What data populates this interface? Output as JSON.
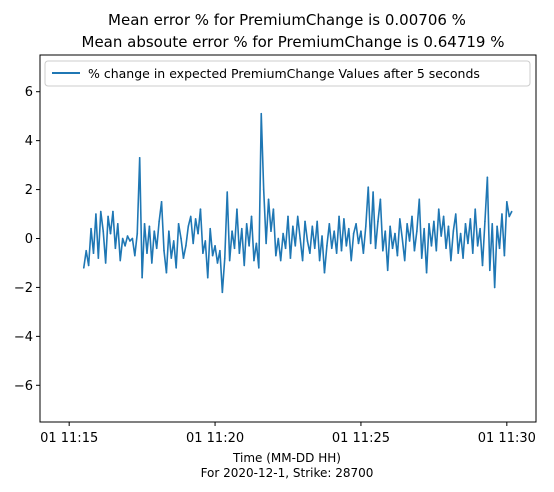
{
  "chart_data": {
    "type": "line",
    "title_lines": [
      "Mean error % for PremiumChange is 0.00706 %",
      "Mean absoute error % for PremiumChange is 0.64719 %"
    ],
    "xlabel_lines": [
      "Time (MM-DD HH)",
      "For 2020-12-1, Strike: 28700"
    ],
    "ylabel": "",
    "xlim": [
      "2020-12-01 11:14:00",
      "2020-12-01 11:31:00"
    ],
    "ylim": [
      -7.5,
      7.5
    ],
    "x_ticks": [
      {
        "value": "2020-12-01 11:15:00",
        "label": "01 11:15"
      },
      {
        "value": "2020-12-01 11:20:00",
        "label": "01 11:20"
      },
      {
        "value": "2020-12-01 11:25:00",
        "label": "01 11:25"
      },
      {
        "value": "2020-12-01 11:30:00",
        "label": "01 11:30"
      }
    ],
    "y_ticks": [
      {
        "value": -6,
        "label": "−6"
      },
      {
        "value": -4,
        "label": "−4"
      },
      {
        "value": -2,
        "label": "−2"
      },
      {
        "value": 0,
        "label": "0"
      },
      {
        "value": 2,
        "label": "2"
      },
      {
        "value": 4,
        "label": "4"
      },
      {
        "value": 6,
        "label": "6"
      }
    ],
    "grid": false,
    "legend_position": "top",
    "series": [
      {
        "name": "% change in expected PremiumChange Values after 5 seconds",
        "color": "#1f77b4",
        "points": [
          [
            "2020-12-01 11:15:30",
            -1.2
          ],
          [
            "2020-12-01 11:15:35",
            -0.5
          ],
          [
            "2020-12-01 11:15:40",
            -1.1
          ],
          [
            "2020-12-01 11:15:45",
            0.4
          ],
          [
            "2020-12-01 11:15:50",
            -0.6
          ],
          [
            "2020-12-01 11:15:55",
            1.0
          ],
          [
            "2020-12-01 11:16:00",
            -0.8
          ],
          [
            "2020-12-01 11:16:05",
            1.1
          ],
          [
            "2020-12-01 11:16:10",
            0.3
          ],
          [
            "2020-12-01 11:16:15",
            -1.0
          ],
          [
            "2020-12-01 11:16:20",
            0.9
          ],
          [
            "2020-12-01 11:16:25",
            0.2
          ],
          [
            "2020-12-01 11:16:30",
            1.1
          ],
          [
            "2020-12-01 11:16:35",
            -0.4
          ],
          [
            "2020-12-01 11:16:40",
            0.6
          ],
          [
            "2020-12-01 11:16:45",
            -0.9
          ],
          [
            "2020-12-01 11:16:50",
            0.0
          ],
          [
            "2020-12-01 11:16:55",
            -0.3
          ],
          [
            "2020-12-01 11:17:00",
            0.1
          ],
          [
            "2020-12-01 11:17:05",
            -0.1
          ],
          [
            "2020-12-01 11:17:10",
            0.0
          ],
          [
            "2020-12-01 11:17:15",
            -0.7
          ],
          [
            "2020-12-01 11:17:20",
            0.2
          ],
          [
            "2020-12-01 11:17:25",
            3.3
          ],
          [
            "2020-12-01 11:17:30",
            -1.6
          ],
          [
            "2020-12-01 11:17:35",
            0.6
          ],
          [
            "2020-12-01 11:17:40",
            -0.6
          ],
          [
            "2020-12-01 11:17:45",
            0.5
          ],
          [
            "2020-12-01 11:17:50",
            -1.0
          ],
          [
            "2020-12-01 11:17:55",
            0.3
          ],
          [
            "2020-12-01 11:18:00",
            -0.4
          ],
          [
            "2020-12-01 11:18:05",
            0.7
          ],
          [
            "2020-12-01 11:18:10",
            1.5
          ],
          [
            "2020-12-01 11:18:15",
            -0.5
          ],
          [
            "2020-12-01 11:18:20",
            -1.4
          ],
          [
            "2020-12-01 11:18:25",
            0.3
          ],
          [
            "2020-12-01 11:18:30",
            -0.8
          ],
          [
            "2020-12-01 11:18:35",
            -0.1
          ],
          [
            "2020-12-01 11:18:40",
            -1.2
          ],
          [
            "2020-12-01 11:18:45",
            0.6
          ],
          [
            "2020-12-01 11:18:50",
            0.0
          ],
          [
            "2020-12-01 11:18:55",
            -0.8
          ],
          [
            "2020-12-01 11:19:00",
            -0.3
          ],
          [
            "2020-12-01 11:19:05",
            0.5
          ],
          [
            "2020-12-01 11:19:10",
            0.9
          ],
          [
            "2020-12-01 11:19:15",
            -0.2
          ],
          [
            "2020-12-01 11:19:20",
            0.8
          ],
          [
            "2020-12-01 11:19:25",
            0.2
          ],
          [
            "2020-12-01 11:19:30",
            1.2
          ],
          [
            "2020-12-01 11:19:35",
            -0.6
          ],
          [
            "2020-12-01 11:19:40",
            -0.1
          ],
          [
            "2020-12-01 11:19:45",
            -1.6
          ],
          [
            "2020-12-01 11:19:50",
            0.4
          ],
          [
            "2020-12-01 11:19:55",
            -0.7
          ],
          [
            "2020-12-01 11:20:00",
            -0.3
          ],
          [
            "2020-12-01 11:20:05",
            -1.0
          ],
          [
            "2020-12-01 11:20:10",
            -0.5
          ],
          [
            "2020-12-01 11:20:15",
            -2.2
          ],
          [
            "2020-12-01 11:20:20",
            -0.8
          ],
          [
            "2020-12-01 11:20:25",
            1.9
          ],
          [
            "2020-12-01 11:20:30",
            -0.9
          ],
          [
            "2020-12-01 11:20:35",
            0.3
          ],
          [
            "2020-12-01 11:20:40",
            -0.4
          ],
          [
            "2020-12-01 11:20:45",
            1.2
          ],
          [
            "2020-12-01 11:20:50",
            -0.6
          ],
          [
            "2020-12-01 11:20:55",
            0.4
          ],
          [
            "2020-12-01 11:21:00",
            -1.1
          ],
          [
            "2020-12-01 11:21:05",
            0.6
          ],
          [
            "2020-12-01 11:21:10",
            -0.3
          ],
          [
            "2020-12-01 11:21:15",
            0.9
          ],
          [
            "2020-12-01 11:21:20",
            -0.9
          ],
          [
            "2020-12-01 11:21:25",
            -0.2
          ],
          [
            "2020-12-01 11:21:30",
            -1.2
          ],
          [
            "2020-12-01 11:21:35",
            5.1
          ],
          [
            "2020-12-01 11:21:40",
            2.0
          ],
          [
            "2020-12-01 11:21:45",
            -0.2
          ],
          [
            "2020-12-01 11:21:50",
            1.6
          ],
          [
            "2020-12-01 11:21:55",
            0.3
          ],
          [
            "2020-12-01 11:22:00",
            1.2
          ],
          [
            "2020-12-01 11:22:05",
            -0.7
          ],
          [
            "2020-12-01 11:22:10",
            0.0
          ],
          [
            "2020-12-01 11:22:15",
            -0.9
          ],
          [
            "2020-12-01 11:22:20",
            0.2
          ],
          [
            "2020-12-01 11:22:25",
            -0.4
          ],
          [
            "2020-12-01 11:22:30",
            0.9
          ],
          [
            "2020-12-01 11:22:35",
            -0.8
          ],
          [
            "2020-12-01 11:22:40",
            0.5
          ],
          [
            "2020-12-01 11:22:45",
            -0.3
          ],
          [
            "2020-12-01 11:22:50",
            0.9
          ],
          [
            "2020-12-01 11:22:55",
            0.0
          ],
          [
            "2020-12-01 11:23:00",
            -0.9
          ],
          [
            "2020-12-01 11:23:05",
            0.7
          ],
          [
            "2020-12-01 11:23:10",
            -0.1
          ],
          [
            "2020-12-01 11:23:15",
            -0.6
          ],
          [
            "2020-12-01 11:23:20",
            0.5
          ],
          [
            "2020-12-01 11:23:25",
            -0.4
          ],
          [
            "2020-12-01 11:23:30",
            0.7
          ],
          [
            "2020-12-01 11:23:35",
            -0.9
          ],
          [
            "2020-12-01 11:23:40",
            0.1
          ],
          [
            "2020-12-01 11:23:45",
            -1.4
          ],
          [
            "2020-12-01 11:23:50",
            -0.3
          ],
          [
            "2020-12-01 11:23:55",
            0.6
          ],
          [
            "2020-12-01 11:24:00",
            -0.4
          ],
          [
            "2020-12-01 11:24:05",
            0.3
          ],
          [
            "2020-12-01 11:24:10",
            -0.6
          ],
          [
            "2020-12-01 11:24:15",
            0.9
          ],
          [
            "2020-12-01 11:24:20",
            -0.5
          ],
          [
            "2020-12-01 11:24:25",
            0.8
          ],
          [
            "2020-12-01 11:24:30",
            -0.3
          ],
          [
            "2020-12-01 11:24:35",
            0.4
          ],
          [
            "2020-12-01 11:24:40",
            -0.9
          ],
          [
            "2020-12-01 11:24:45",
            0.2
          ],
          [
            "2020-12-01 11:24:50",
            0.6
          ],
          [
            "2020-12-01 11:24:55",
            -0.2
          ],
          [
            "2020-12-01 11:25:00",
            0.3
          ],
          [
            "2020-12-01 11:25:05",
            -0.6
          ],
          [
            "2020-12-01 11:25:10",
            0.5
          ],
          [
            "2020-12-01 11:25:15",
            2.1
          ],
          [
            "2020-12-01 11:25:20",
            -0.2
          ],
          [
            "2020-12-01 11:25:25",
            1.9
          ],
          [
            "2020-12-01 11:25:30",
            -0.4
          ],
          [
            "2020-12-01 11:25:35",
            0.7
          ],
          [
            "2020-12-01 11:25:40",
            1.6
          ],
          [
            "2020-12-01 11:25:45",
            -0.5
          ],
          [
            "2020-12-01 11:25:50",
            0.3
          ],
          [
            "2020-12-01 11:25:55",
            -1.3
          ],
          [
            "2020-12-01 11:26:00",
            0.5
          ],
          [
            "2020-12-01 11:26:05",
            -0.4
          ],
          [
            "2020-12-01 11:26:10",
            0.2
          ],
          [
            "2020-12-01 11:26:15",
            -0.7
          ],
          [
            "2020-12-01 11:26:20",
            0.8
          ],
          [
            "2020-12-01 11:26:25",
            0.0
          ],
          [
            "2020-12-01 11:26:30",
            -0.9
          ],
          [
            "2020-12-01 11:26:35",
            0.6
          ],
          [
            "2020-12-01 11:26:40",
            -0.1
          ],
          [
            "2020-12-01 11:26:45",
            0.9
          ],
          [
            "2020-12-01 11:26:50",
            -0.5
          ],
          [
            "2020-12-01 11:26:55",
            0.3
          ],
          [
            "2020-12-01 11:27:00",
            1.6
          ],
          [
            "2020-12-01 11:27:05",
            -0.8
          ],
          [
            "2020-12-01 11:27:10",
            0.4
          ],
          [
            "2020-12-01 11:27:15",
            -1.4
          ],
          [
            "2020-12-01 11:27:20",
            0.6
          ],
          [
            "2020-12-01 11:27:25",
            -0.3
          ],
          [
            "2020-12-01 11:27:30",
            0.7
          ],
          [
            "2020-12-01 11:27:35",
            -0.5
          ],
          [
            "2020-12-01 11:27:40",
            1.2
          ],
          [
            "2020-12-01 11:27:45",
            0.1
          ],
          [
            "2020-12-01 11:27:50",
            0.9
          ],
          [
            "2020-12-01 11:27:55",
            -0.4
          ],
          [
            "2020-12-01 11:28:00",
            0.5
          ],
          [
            "2020-12-01 11:28:05",
            -0.9
          ],
          [
            "2020-12-01 11:28:10",
            0.3
          ],
          [
            "2020-12-01 11:28:15",
            1.0
          ],
          [
            "2020-12-01 11:28:20",
            -0.6
          ],
          [
            "2020-12-01 11:28:25",
            0.2
          ],
          [
            "2020-12-01 11:28:30",
            -0.8
          ],
          [
            "2020-12-01 11:28:35",
            0.6
          ],
          [
            "2020-12-01 11:28:40",
            -0.2
          ],
          [
            "2020-12-01 11:28:45",
            0.8
          ],
          [
            "2020-12-01 11:28:50",
            -0.6
          ],
          [
            "2020-12-01 11:28:55",
            1.2
          ],
          [
            "2020-12-01 11:29:00",
            -0.3
          ],
          [
            "2020-12-01 11:29:05",
            0.4
          ],
          [
            "2020-12-01 11:29:10",
            -1.1
          ],
          [
            "2020-12-01 11:29:15",
            0.7
          ],
          [
            "2020-12-01 11:29:20",
            2.5
          ],
          [
            "2020-12-01 11:29:25",
            -1.3
          ],
          [
            "2020-12-01 11:29:30",
            0.6
          ],
          [
            "2020-12-01 11:29:35",
            -2.0
          ],
          [
            "2020-12-01 11:29:40",
            0.5
          ],
          [
            "2020-12-01 11:29:45",
            -0.4
          ],
          [
            "2020-12-01 11:29:50",
            1.0
          ],
          [
            "2020-12-01 11:29:55",
            -0.7
          ],
          [
            "2020-12-01 11:30:00",
            1.5
          ],
          [
            "2020-12-01 11:30:05",
            0.9
          ],
          [
            "2020-12-01 11:30:10",
            1.1
          ]
        ]
      }
    ]
  }
}
